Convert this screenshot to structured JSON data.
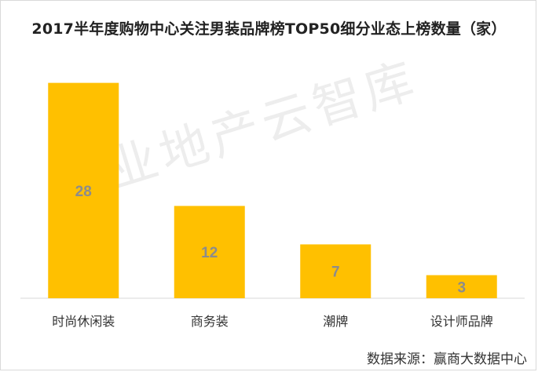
{
  "title": "2017半年度购物中心关注男装品牌榜TOP50细分业态上榜数量（家）",
  "watermark": "商业地产云智库",
  "source": "数据来源：赢商大数据中心",
  "colors": {
    "bar": "#FFC000",
    "value_label": "#8c8c8c",
    "axis": "#d9d9d9"
  },
  "chart_data": {
    "type": "bar",
    "title": "2017半年度购物中心关注男装品牌榜TOP50细分业态上榜数量（家）",
    "categories": [
      "时尚休闲装",
      "商务装",
      "潮牌",
      "设计师品牌"
    ],
    "values": [
      28,
      12,
      7,
      3
    ],
    "xlabel": "",
    "ylabel": "",
    "ylim": [
      0,
      30
    ],
    "grid": false,
    "legend": "none"
  }
}
